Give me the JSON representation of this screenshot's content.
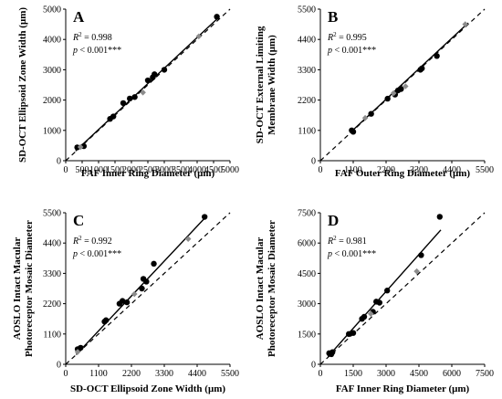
{
  "chart_data": [
    {
      "type": "scatter",
      "panel": "A",
      "xlabel": "FAF Inner Ring Diameter (μm)",
      "ylabel": "SD-OCT Ellipsoid Zone Width (μm)",
      "xlim": [
        0,
        5000
      ],
      "ylim": [
        0,
        5000
      ],
      "xticks": [
        0,
        500,
        1000,
        1500,
        2000,
        2500,
        3000,
        3500,
        4000,
        4500,
        5000
      ],
      "yticks": [
        0,
        1000,
        2000,
        3000,
        4000,
        5000
      ],
      "r2_prefix": "R",
      "r2_sup": "2",
      "r2_value": " = 0.998",
      "p_prefix": "p",
      "p_value": " < 0.001***",
      "fit": [
        [
          300,
          320
        ],
        [
          4650,
          4720
        ]
      ],
      "identity": [
        [
          0,
          0
        ],
        [
          5000,
          5000
        ]
      ],
      "series": [
        {
          "color": "#000000",
          "points": [
            [
              350,
              440
            ],
            [
              550,
              480
            ],
            [
              1350,
              1380
            ],
            [
              1450,
              1460
            ],
            [
              1750,
              1900
            ],
            [
              1950,
              2050
            ],
            [
              2100,
              2100
            ],
            [
              2500,
              2650
            ],
            [
              2650,
              2750
            ],
            [
              2700,
              2850
            ],
            [
              3000,
              3000
            ],
            [
              4600,
              4750
            ]
          ]
        },
        {
          "color": "#8c8c8c",
          "points": [
            [
              450,
              450
            ],
            [
              2350,
              2250
            ],
            [
              4050,
              4100
            ]
          ]
        }
      ]
    },
    {
      "type": "scatter",
      "panel": "B",
      "xlabel": "FAF Outer Ring Diameter (μm)",
      "ylabel": [
        "SD-OCT External Limiting",
        "Membrane Width (μm)"
      ],
      "xlim": [
        0,
        5500
      ],
      "ylim": [
        0,
        5500
      ],
      "xticks": [
        0,
        1100,
        2200,
        3300,
        4400,
        5500
      ],
      "yticks": [
        0,
        1100,
        2200,
        3300,
        4400,
        5500
      ],
      "r2_prefix": "R",
      "r2_sup": "2",
      "r2_value": " = 0.995",
      "p_prefix": "p",
      "p_value": " < 0.001***",
      "fit": [
        [
          1000,
          1020
        ],
        [
          4950,
          5000
        ]
      ],
      "identity": [
        [
          0,
          0
        ],
        [
          5500,
          5500
        ]
      ],
      "series": [
        {
          "color": "#000000",
          "points": [
            [
              1050,
              1100
            ],
            [
              1100,
              1050
            ],
            [
              1700,
              1700
            ],
            [
              2250,
              2250
            ],
            [
              2500,
              2400
            ],
            [
              2600,
              2550
            ],
            [
              2700,
              2600
            ],
            [
              3350,
              3300
            ],
            [
              3400,
              3350
            ],
            [
              3900,
              3800
            ]
          ]
        },
        {
          "color": "#8c8c8c",
          "points": [
            [
              1500,
              1550
            ],
            [
              2450,
              2450
            ],
            [
              2850,
              2700
            ],
            [
              4850,
              4950
            ]
          ]
        }
      ]
    },
    {
      "type": "scatter",
      "panel": "C",
      "xlabel": "SD-OCT Ellipsoid Zone Width (μm)",
      "ylabel": [
        "AOSLO Intact Macular",
        "Photoreceptor Mosaic Diameter"
      ],
      "xlim": [
        0,
        5500
      ],
      "ylim": [
        0,
        5500
      ],
      "xticks": [
        0,
        1100,
        2200,
        3300,
        4400,
        5500
      ],
      "yticks": [
        0,
        1100,
        2200,
        3300,
        4400,
        5500
      ],
      "r2_prefix": "R",
      "r2_sup": "2",
      "r2_value": " = 0.992",
      "p_prefix": "p",
      "p_value": " < 0.001***",
      "fit": [
        [
          350,
          350
        ],
        [
          4650,
          5300
        ]
      ],
      "identity": [
        [
          0,
          0
        ],
        [
          5500,
          5500
        ]
      ],
      "series": [
        {
          "color": "#000000",
          "points": [
            [
              400,
              550
            ],
            [
              500,
              600
            ],
            [
              1300,
              1550
            ],
            [
              1350,
              1600
            ],
            [
              1800,
              2200
            ],
            [
              1900,
              2300
            ],
            [
              2050,
              2250
            ],
            [
              2550,
              2750
            ],
            [
              2600,
              3100
            ],
            [
              2700,
              3000
            ],
            [
              2950,
              3650
            ],
            [
              4650,
              5350
            ]
          ]
        },
        {
          "color": "#8c8c8c",
          "points": [
            [
              400,
              450
            ],
            [
              2300,
              2550
            ],
            [
              4100,
              4550
            ]
          ]
        }
      ]
    },
    {
      "type": "scatter",
      "panel": "D",
      "xlabel": "FAF Inner Ring Diameter (μm)",
      "ylabel": [
        "AOSLO Intact Macular",
        "Photoreceptor Mosaic Diameter"
      ],
      "xlim": [
        0,
        7500
      ],
      "ylim": [
        0,
        7500
      ],
      "xticks": [
        0,
        1500,
        3000,
        4500,
        6000,
        7500
      ],
      "yticks": [
        0,
        1500,
        3000,
        4500,
        6000,
        7500
      ],
      "r2_prefix": "R",
      "r2_sup": "2",
      "r2_value": " = 0.981",
      "p_prefix": "p",
      "p_value": " < 0.001***",
      "fit": [
        [
          350,
          380
        ],
        [
          5500,
          6650
        ]
      ],
      "identity": [
        [
          0,
          0
        ],
        [
          7500,
          7500
        ]
      ],
      "series": [
        {
          "color": "#000000",
          "points": [
            [
              400,
              550
            ],
            [
              500,
              500
            ],
            [
              550,
              600
            ],
            [
              1300,
              1500
            ],
            [
              1500,
              1550
            ],
            [
              1900,
              2250
            ],
            [
              2000,
              2350
            ],
            [
              2400,
              2600
            ],
            [
              2550,
              3100
            ],
            [
              2700,
              3050
            ],
            [
              3050,
              3650
            ],
            [
              4600,
              5400
            ],
            [
              5450,
              7300
            ]
          ]
        },
        {
          "color": "#8c8c8c",
          "points": [
            [
              2300,
              2500
            ],
            [
              4400,
              4600
            ]
          ]
        }
      ]
    }
  ]
}
